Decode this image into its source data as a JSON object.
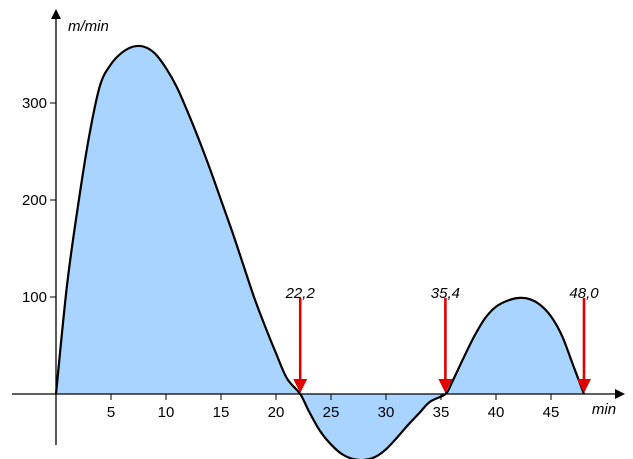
{
  "chart_data": {
    "type": "area",
    "title": "",
    "xlabel": "min",
    "ylabel": "m/min",
    "xlim": [
      0,
      50
    ],
    "ylim": [
      -70,
      380
    ],
    "x_ticks": [
      5,
      10,
      15,
      20,
      25,
      30,
      35,
      40,
      45
    ],
    "y_ticks": [
      100,
      200,
      300
    ],
    "grid": false,
    "colors": {
      "fill": "#a8d4ff",
      "curve": "#000000",
      "arrow": "#e00000"
    },
    "series": [
      {
        "x": [
          0,
          1,
          2,
          3,
          4,
          5,
          6,
          7,
          8,
          9,
          10,
          11,
          12,
          13,
          14,
          15,
          16,
          17,
          18,
          19,
          20,
          21,
          22.2,
          23,
          24,
          25,
          26,
          27,
          28,
          29,
          30,
          31,
          32,
          33,
          34,
          35.4,
          36,
          37,
          38,
          39,
          40,
          41,
          42,
          43,
          44,
          45,
          46,
          47,
          48.0
        ],
        "values": [
          0,
          112,
          194,
          265,
          318,
          340,
          352,
          358,
          358,
          351,
          336,
          316,
          290,
          262,
          232,
          200,
          168,
          134,
          100,
          70,
          42,
          16,
          0,
          -18,
          -38,
          -52,
          -62,
          -67,
          -68,
          -65,
          -57,
          -45,
          -32,
          -20,
          -8,
          0,
          12,
          36,
          59,
          78,
          90,
          96,
          99,
          98,
          92,
          80,
          60,
          30,
          0
        ]
      }
    ],
    "annotations": [
      {
        "x": 22.2,
        "label": "22,2"
      },
      {
        "x": 35.4,
        "label": "35,4"
      },
      {
        "x": 48.0,
        "label": "48,0"
      }
    ]
  }
}
